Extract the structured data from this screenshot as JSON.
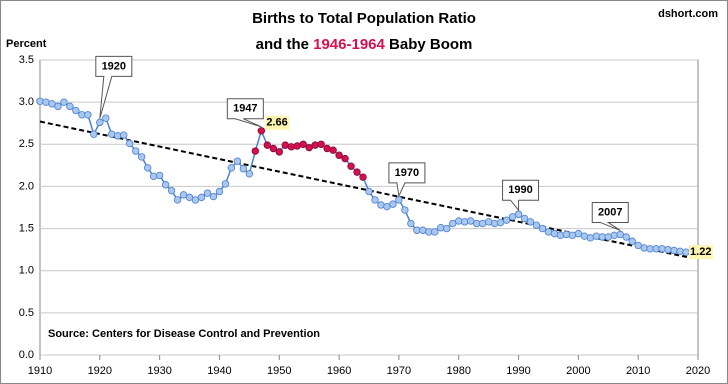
{
  "chart_data": {
    "type": "line",
    "title": {
      "line1": "Births to Total Population Ratio",
      "line2_start": "and the",
      "line2_highlight": "1946-1964",
      "line2_end": "Baby Boom"
    },
    "watermark": "dshort.com",
    "y_label": "Percent",
    "source": "Source: Centers for Disease Control and Prevention",
    "x": [
      1910,
      1911,
      1912,
      1913,
      1914,
      1915,
      1916,
      1917,
      1918,
      1919,
      1920,
      1921,
      1922,
      1923,
      1924,
      1925,
      1926,
      1927,
      1928,
      1929,
      1930,
      1931,
      1932,
      1933,
      1934,
      1935,
      1936,
      1937,
      1938,
      1939,
      1940,
      1941,
      1942,
      1943,
      1944,
      1945,
      1946,
      1947,
      1948,
      1949,
      1950,
      1951,
      1952,
      1953,
      1954,
      1955,
      1956,
      1957,
      1958,
      1959,
      1960,
      1961,
      1962,
      1963,
      1964,
      1965,
      1966,
      1967,
      1968,
      1969,
      1970,
      1971,
      1972,
      1973,
      1974,
      1975,
      1976,
      1977,
      1978,
      1979,
      1980,
      1981,
      1982,
      1983,
      1984,
      1985,
      1986,
      1987,
      1988,
      1989,
      1990,
      1991,
      1992,
      1993,
      1994,
      1995,
      1996,
      1997,
      1998,
      1999,
      2000,
      2001,
      2002,
      2003,
      2004,
      2005,
      2006,
      2007,
      2008,
      2009,
      2010,
      2011,
      2012,
      2013,
      2014,
      2015,
      2016,
      2017,
      2018
    ],
    "series": [
      {
        "name": "Ratio",
        "color": "#4a7fd0",
        "marker_fill": "#a9c8f0",
        "highlight_fill": "#d6104e",
        "highlight_stroke": "#7a0a3a",
        "values": [
          3.01,
          3.0,
          2.98,
          2.95,
          3.0,
          2.95,
          2.9,
          2.85,
          2.85,
          2.62,
          2.76,
          2.81,
          2.62,
          2.6,
          2.61,
          2.51,
          2.42,
          2.35,
          2.22,
          2.12,
          2.13,
          2.02,
          1.95,
          1.84,
          1.9,
          1.87,
          1.84,
          1.87,
          1.92,
          1.88,
          1.94,
          2.03,
          2.22,
          2.3,
          2.21,
          2.15,
          2.42,
          2.66,
          2.49,
          2.45,
          2.41,
          2.49,
          2.47,
          2.48,
          2.5,
          2.46,
          2.49,
          2.5,
          2.45,
          2.43,
          2.37,
          2.33,
          2.24,
          2.17,
          2.11,
          1.94,
          1.84,
          1.78,
          1.76,
          1.79,
          1.84,
          1.72,
          1.56,
          1.48,
          1.48,
          1.46,
          1.46,
          1.51,
          1.5,
          1.56,
          1.59,
          1.58,
          1.59,
          1.56,
          1.56,
          1.58,
          1.56,
          1.57,
          1.6,
          1.64,
          1.67,
          1.62,
          1.58,
          1.54,
          1.5,
          1.46,
          1.44,
          1.42,
          1.43,
          1.42,
          1.44,
          1.41,
          1.39,
          1.41,
          1.4,
          1.4,
          1.42,
          1.43,
          1.4,
          1.35,
          1.3,
          1.27,
          1.26,
          1.26,
          1.26,
          1.25,
          1.24,
          1.23,
          1.22
        ],
        "value_labels": [
          null,
          null,
          null,
          null,
          null,
          null,
          null,
          null,
          null,
          null,
          null,
          null,
          null,
          null,
          null,
          null,
          null,
          null,
          null,
          null,
          null,
          null,
          null,
          null,
          null,
          null,
          null,
          null,
          null,
          null,
          null,
          null,
          null,
          null,
          null,
          null,
          null,
          "2.66",
          null,
          null,
          null,
          null,
          null,
          null,
          null,
          null,
          null,
          null,
          null,
          null,
          null,
          null,
          null,
          null,
          null,
          null,
          null,
          null,
          null,
          null,
          null,
          null,
          null,
          null,
          null,
          null,
          null,
          null,
          null,
          null,
          null,
          null,
          null,
          null,
          null,
          null,
          null,
          null,
          null,
          null,
          null,
          null,
          null,
          null,
          null,
          null,
          null,
          null,
          null,
          null,
          null,
          null,
          null,
          null,
          null,
          null,
          null,
          null,
          null,
          null,
          null,
          null,
          null,
          null,
          null,
          null,
          null,
          null,
          "1.22"
        ]
      }
    ],
    "highlight_x": [
      1946,
      1964
    ],
    "annotations": [
      {
        "text": "1920",
        "x": 1920
      },
      {
        "text": "1947",
        "x": 1947
      },
      {
        "text": "1970",
        "x": 1970
      },
      {
        "text": "1990",
        "x": 1990
      },
      {
        "text": "2007",
        "x": 2007
      }
    ],
    "trendline": {
      "x": [
        1910,
        2019
      ],
      "y": [
        2.77,
        1.15
      ],
      "style": "dashed",
      "color": "#000000"
    },
    "xlim": [
      1910,
      2020
    ],
    "xticks": [
      1910,
      1920,
      1930,
      1940,
      1950,
      1960,
      1970,
      1980,
      1990,
      2000,
      2010,
      2020
    ],
    "ylim": [
      0,
      3.5
    ],
    "yticks": [
      {
        "value": 0,
        "label": "0.0"
      },
      0.5,
      {
        "value": 1,
        "label": "1.0"
      },
      1.5,
      {
        "value": 2,
        "label": "2.0"
      },
      2.5,
      {
        "value": 3,
        "label": "3.0"
      },
      3.5
    ],
    "grid": true
  }
}
